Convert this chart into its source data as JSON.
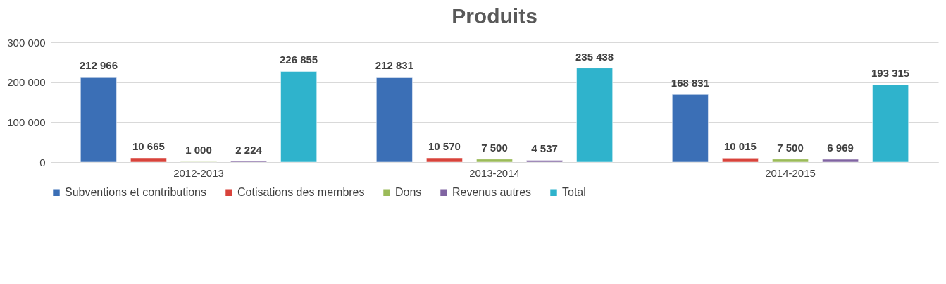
{
  "chart_data": {
    "type": "bar",
    "title": "Produits",
    "categories": [
      "2012-2013",
      "2013-2014",
      "2014-2015"
    ],
    "series": [
      {
        "name": "Subventions et contributions",
        "color": "#3b6fb6",
        "values": [
          212966,
          212831,
          168831
        ],
        "value_labels": [
          "212 966",
          "212 831",
          "168 831"
        ]
      },
      {
        "name": "Cotisations des membres",
        "color": "#d8433b",
        "values": [
          10665,
          10570,
          10015
        ],
        "value_labels": [
          "10 665",
          "10 570",
          "10 015"
        ]
      },
      {
        "name": "Dons",
        "color": "#9bbb59",
        "values": [
          1000,
          7500,
          7500
        ],
        "value_labels": [
          "1 000",
          "7 500",
          "7 500"
        ]
      },
      {
        "name": "Revenus autres",
        "color": "#8064a2",
        "values": [
          2224,
          4537,
          6969
        ],
        "value_labels": [
          "2 224",
          "4 537",
          "6 969"
        ]
      },
      {
        "name": "Total",
        "color": "#2fb3cc",
        "values": [
          226855,
          235438,
          193315
        ],
        "value_labels": [
          "226 855",
          "235 438",
          "193 315"
        ]
      }
    ],
    "ylim": [
      0,
      300000
    ],
    "yticks": [
      {
        "value": 0,
        "label": "0"
      },
      {
        "value": 100000,
        "label": "100 000"
      },
      {
        "value": 200000,
        "label": "200 000"
      },
      {
        "value": 300000,
        "label": "300 000"
      }
    ],
    "grid": "y",
    "legend": "bottom"
  }
}
